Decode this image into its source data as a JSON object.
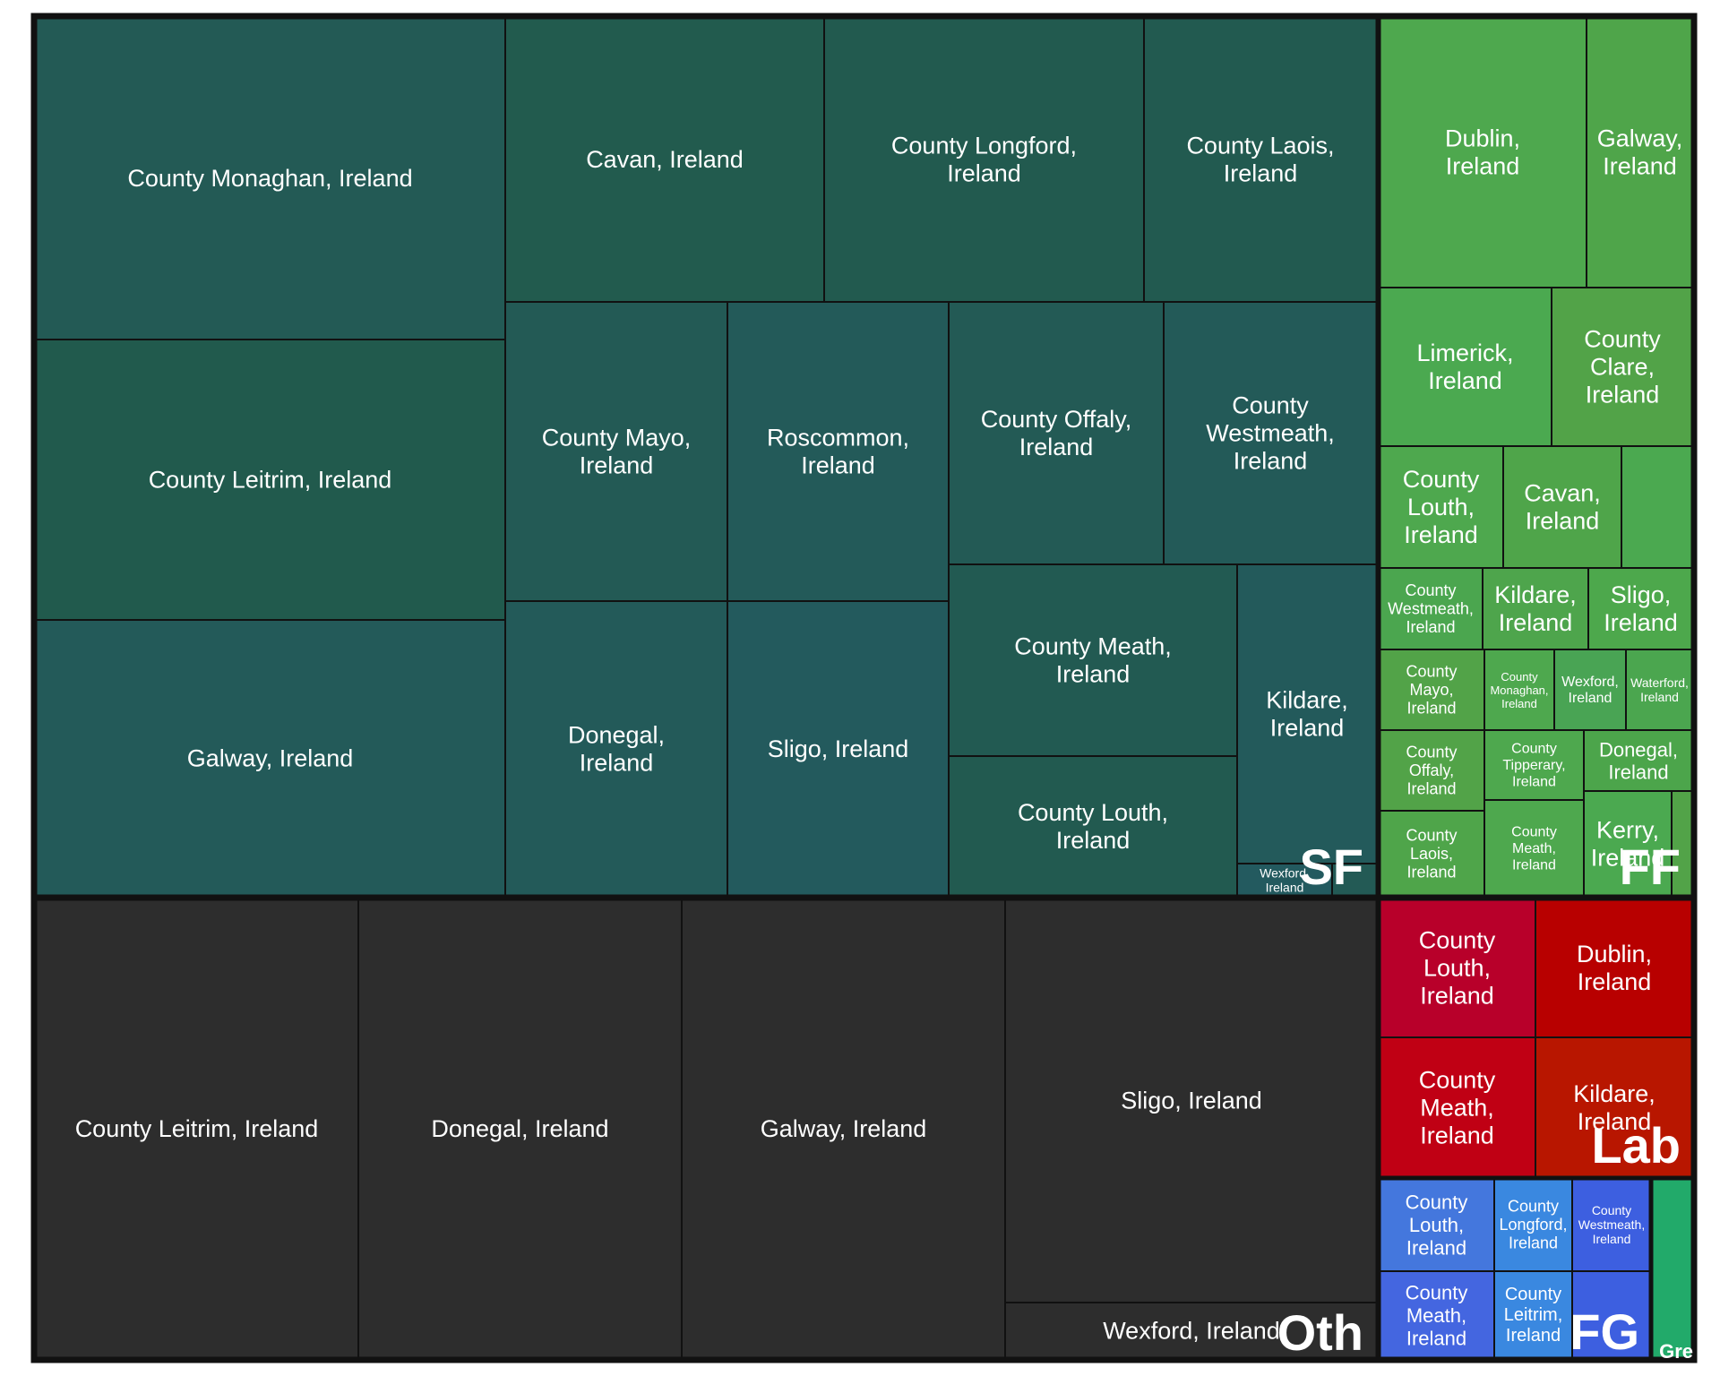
{
  "chart_data": {
    "type": "treemap",
    "title": "",
    "groups": [
      {
        "name": "SF",
        "color": "#235a55",
        "tiles": [
          {
            "label": "County Monaghan, Ireland",
            "color": "#235a55"
          },
          {
            "label": "County Leitrim, Ireland",
            "color": "#215a4d"
          },
          {
            "label": "Galway, Ireland",
            "color": "#235a59"
          },
          {
            "label": "Cavan, Ireland",
            "color": "#225b4e"
          },
          {
            "label": "County Longford, Ireland",
            "color": "#225a4f"
          },
          {
            "label": "County Laois, Ireland",
            "color": "#225a50"
          },
          {
            "label": "County Mayo, Ireland",
            "color": "#235a55"
          },
          {
            "label": "Roscommon, Ireland",
            "color": "#235a59"
          },
          {
            "label": "County Offaly, Ireland",
            "color": "#235a55"
          },
          {
            "label": "County Westmeath, Ireland",
            "color": "#235a58"
          },
          {
            "label": "Donegal, Ireland",
            "color": "#235a59"
          },
          {
            "label": "Sligo, Ireland",
            "color": "#235a5d"
          },
          {
            "label": "County Meath, Ireland",
            "color": "#225a52"
          },
          {
            "label": "County Louth, Ireland",
            "color": "#225a50"
          },
          {
            "label": "Kildare, Ireland",
            "color": "#235a5b"
          },
          {
            "label": "Wexford, Ireland",
            "color": "#235a5f"
          },
          {
            "label": "",
            "color": "#235a55"
          }
        ]
      },
      {
        "name": "FF",
        "color": "#4ea84e",
        "tiles": [
          {
            "label": "Dublin, Ireland",
            "color": "#4ea84e"
          },
          {
            "label": "Galway, Ireland",
            "color": "#4fa54a"
          },
          {
            "label": "Limerick, Ireland",
            "color": "#4ba950"
          },
          {
            "label": "County Clare, Ireland",
            "color": "#52a348"
          },
          {
            "label": "County Louth, Ireland",
            "color": "#4ea84e"
          },
          {
            "label": "Cavan, Ireland",
            "color": "#4fa54a"
          },
          {
            "label": "",
            "color": "#4ba950"
          },
          {
            "label": "County Westmeath, Ireland",
            "color": "#4ba64f"
          },
          {
            "label": "Kildare, Ireland",
            "color": "#4ea54c"
          },
          {
            "label": "Sligo, Ireland",
            "color": "#4da84c"
          },
          {
            "label": "County Mayo, Ireland",
            "color": "#52a348"
          },
          {
            "label": "County Monaghan, Ireland",
            "color": "#4ea84e"
          },
          {
            "label": "Wexford, Ireland",
            "color": "#49a454"
          },
          {
            "label": "Waterford, Ireland",
            "color": "#4ba64f"
          },
          {
            "label": "County Offaly, Ireland",
            "color": "#52a348"
          },
          {
            "label": "County Tipperary, Ireland",
            "color": "#4ea84e"
          },
          {
            "label": "Donegal, Ireland",
            "color": "#4ca54b"
          },
          {
            "label": "County Laois, Ireland",
            "color": "#4fa54a"
          },
          {
            "label": "County Meath, Ireland",
            "color": "#4ea84e"
          },
          {
            "label": "Kerry, Ireland",
            "color": "#4ba950"
          },
          {
            "label": "",
            "color": "#52a348"
          }
        ]
      },
      {
        "name": "Oth",
        "color": "#2d2d2d",
        "tiles": [
          {
            "label": "County Leitrim, Ireland",
            "color": "#2d2d2d"
          },
          {
            "label": "Donegal, Ireland",
            "color": "#2d2d2d"
          },
          {
            "label": "Galway, Ireland",
            "color": "#2d2d2d"
          },
          {
            "label": "Sligo, Ireland",
            "color": "#2d2d2d"
          },
          {
            "label": "Wexford, Ireland",
            "color": "#2d2d2d"
          }
        ]
      },
      {
        "name": "Lab",
        "color": "#c00000",
        "tiles": [
          {
            "label": "County Louth, Ireland",
            "color": "#b8002a"
          },
          {
            "label": "Dublin, Ireland",
            "color": "#b80000"
          },
          {
            "label": "County Meath, Ireland",
            "color": "#c00014"
          },
          {
            "label": "Kildare, Ireland",
            "color": "#b81600"
          }
        ]
      },
      {
        "name": "FG",
        "color": "#4477dd",
        "tiles": [
          {
            "label": "County Louth, Ireland",
            "color": "#4477dd"
          },
          {
            "label": "County Longford, Ireland",
            "color": "#3a88e0"
          },
          {
            "label": "County Westmeath, Ireland",
            "color": "#3d5fe0"
          },
          {
            "label": "County Meath, Ireland",
            "color": "#4466e0"
          },
          {
            "label": "County Leitrim, Ireland",
            "color": "#3a88e0"
          },
          {
            "label": "",
            "color": "#3d5fe0"
          }
        ]
      },
      {
        "name": "Gre",
        "color": "#22aa6a",
        "tiles": [
          {
            "label": "",
            "color": "#22aa6a"
          }
        ]
      }
    ]
  }
}
